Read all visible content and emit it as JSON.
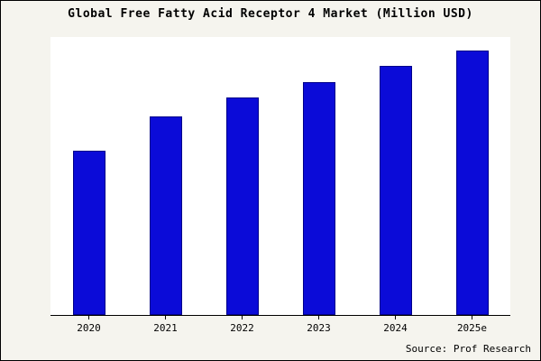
{
  "chart_data": {
    "type": "bar",
    "title": "Global Free Fatty Acid Receptor 4 Market (Million USD)",
    "categories": [
      "2020",
      "2021",
      "2022",
      "2023",
      "2024",
      "2025e"
    ],
    "values": [
      62,
      75,
      82,
      88,
      94,
      100
    ],
    "xlabel": "",
    "ylabel": "",
    "ylim": [
      0,
      105
    ],
    "grid": false,
    "legend_position": "none",
    "bar_color": "#0b0bd8",
    "bar_edge_color": "#00008a",
    "background_color": "#f5f4ee",
    "plot_background_color": "#ffffff",
    "note": "no y-axis tick labels shown; values are relative scale"
  },
  "source": "Source: Prof Research"
}
